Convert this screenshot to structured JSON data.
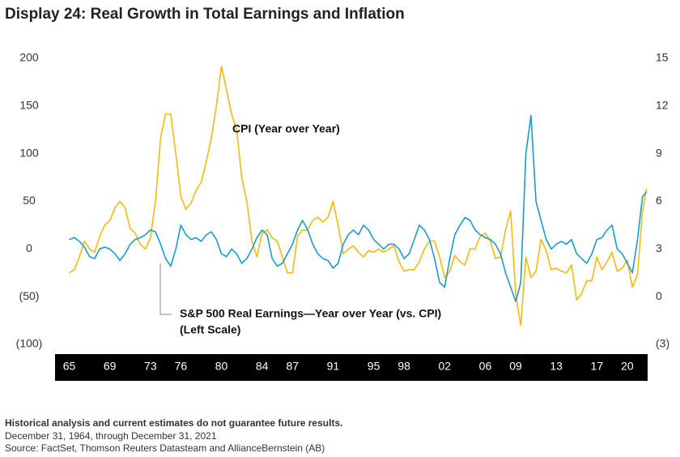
{
  "chart_data": {
    "type": "line",
    "title": "Display 24: Real Growth in Total Earnings and Inflation",
    "annotations": [
      "CPI (Year over Year)",
      "S&P 500 Real Earnings—Year over Year (vs. CPI)",
      "(Left Scale)"
    ],
    "footnotes": [
      "Historical analysis and current estimates do not guarantee future results.",
      "December 31, 1964, through December 31, 2021",
      "Source: FactSet, Thomson Reuters Datasteam and AllianceBernstein (AB)"
    ],
    "x": [
      1965,
      1965.5,
      1966,
      1966.5,
      1967,
      1967.5,
      1968,
      1968.5,
      1969,
      1969.5,
      1970,
      1970.5,
      1971,
      1971.5,
      1972,
      1972.5,
      1973,
      1973.5,
      1974,
      1974.5,
      1975,
      1975.5,
      1976,
      1976.5,
      1977,
      1977.5,
      1978,
      1978.5,
      1979,
      1979.5,
      1980,
      1980.5,
      1981,
      1981.5,
      1982,
      1982.5,
      1983,
      1983.5,
      1984,
      1984.5,
      1985,
      1985.5,
      1986,
      1986.5,
      1987,
      1987.5,
      1988,
      1988.5,
      1989,
      1989.5,
      1990,
      1990.5,
      1991,
      1991.5,
      1992,
      1992.5,
      1993,
      1993.5,
      1994,
      1994.5,
      1995,
      1995.5,
      1996,
      1996.5,
      1997,
      1997.5,
      1998,
      1998.5,
      1999,
      1999.5,
      2000,
      2000.5,
      2001,
      2001.5,
      2002,
      2002.5,
      2003,
      2003.5,
      2004,
      2004.5,
      2005,
      2005.5,
      2006,
      2006.5,
      2007,
      2007.5,
      2008,
      2008.5,
      2009,
      2009.5,
      2010,
      2010.5,
      2011,
      2011.5,
      2012,
      2012.5,
      2013,
      2013.5,
      2014,
      2014.5,
      2015,
      2015.5,
      2016,
      2016.5,
      2017,
      2017.5,
      2018,
      2018.5,
      2019,
      2019.5,
      2020,
      2020.5,
      2021,
      2021.5,
      2021.9
    ],
    "series": [
      {
        "name": "S&P 500 Real Earnings—Year over Year (vs. CPI)",
        "color": "#1a9bd0",
        "axis": "y",
        "values": [
          10,
          12,
          8,
          2,
          -8,
          -10,
          0,
          2,
          0,
          -5,
          -12,
          -5,
          5,
          10,
          12,
          15,
          20,
          18,
          5,
          -10,
          -18,
          0,
          25,
          15,
          10,
          12,
          8,
          15,
          18,
          10,
          -5,
          -8,
          0,
          -5,
          -15,
          -10,
          0,
          12,
          20,
          15,
          -10,
          -18,
          -15,
          -5,
          5,
          20,
          30,
          20,
          5,
          -5,
          -10,
          -12,
          -20,
          -15,
          5,
          15,
          20,
          15,
          25,
          20,
          10,
          5,
          0,
          5,
          5,
          0,
          -10,
          -5,
          10,
          25,
          20,
          10,
          -10,
          -35,
          -40,
          -10,
          15,
          25,
          33,
          30,
          20,
          15,
          12,
          10,
          5,
          -5,
          -25,
          -40,
          -55,
          -35,
          100,
          140,
          50,
          30,
          10,
          0,
          5,
          8,
          5,
          10,
          -5,
          -10,
          -15,
          -5,
          10,
          12,
          20,
          25,
          0,
          -5,
          -15,
          -25,
          10,
          55,
          60
        ]
      },
      {
        "name": "CPI (Year over Year)",
        "color": "#f5b90f",
        "axis": "y2",
        "values": [
          1.5,
          1.7,
          2.5,
          3.5,
          3.0,
          2.8,
          3.8,
          4.5,
          4.8,
          5.6,
          6.0,
          5.6,
          4.3,
          4.0,
          3.3,
          3.0,
          3.7,
          6.0,
          10,
          11.5,
          11.5,
          9.0,
          6.3,
          5.5,
          5.9,
          6.7,
          7.2,
          8.5,
          10,
          12,
          14.5,
          13,
          11.5,
          10.5,
          7.5,
          6,
          3.5,
          2.5,
          4.0,
          4.2,
          3.7,
          3.5,
          2.5,
          1.5,
          1.5,
          3.8,
          4.2,
          4.2,
          4.8,
          5.0,
          4.7,
          5.0,
          6.0,
          4.5,
          2.7,
          3.0,
          3.2,
          2.8,
          2.5,
          2.9,
          2.8,
          3.0,
          2.8,
          3.0,
          3.2,
          2.2,
          1.6,
          1.7,
          1.7,
          2.2,
          3.0,
          3.5,
          3.5,
          2.5,
          1.2,
          1.6,
          2.6,
          2.2,
          2.0,
          3.0,
          3.0,
          3.8,
          4.0,
          3.5,
          2.4,
          2.5,
          4.2,
          5.4,
          0.1,
          -1.8,
          2.5,
          1.2,
          1.6,
          3.6,
          2.9,
          1.7,
          1.8,
          1.6,
          1.5,
          2.0,
          -0.2,
          0.2,
          1.0,
          1.0,
          2.5,
          1.7,
          2.2,
          2.8,
          1.6,
          1.8,
          2.3,
          0.6,
          1.4,
          5.4,
          6.8
        ]
      }
    ],
    "xlim": [
      1963.6,
      2022
    ],
    "xticks": [
      {
        "value": 1965,
        "label": "65"
      },
      {
        "value": 1969,
        "label": "69"
      },
      {
        "value": 1973,
        "label": "73"
      },
      {
        "value": 1976,
        "label": "76"
      },
      {
        "value": 1980,
        "label": "80"
      },
      {
        "value": 1984,
        "label": "84"
      },
      {
        "value": 1987,
        "label": "87"
      },
      {
        "value": 1991,
        "label": "91"
      },
      {
        "value": 1995,
        "label": "95"
      },
      {
        "value": 1998,
        "label": "98"
      },
      {
        "value": 2002,
        "label": "02"
      },
      {
        "value": 2006,
        "label": "06"
      },
      {
        "value": 2009,
        "label": "09"
      },
      {
        "value": 2013,
        "label": "13"
      },
      {
        "value": 2017,
        "label": "17"
      },
      {
        "value": 2020,
        "label": "20"
      }
    ],
    "ylim": [
      -100,
      200
    ],
    "yticks": [
      {
        "value": -100,
        "label": "(100)"
      },
      {
        "value": -50,
        "label": "(50)"
      },
      0,
      50,
      100,
      150,
      200
    ],
    "y2lim": [
      -3,
      15
    ],
    "y2ticks": [
      {
        "value": -3,
        "label": "(3)"
      },
      0,
      3,
      6,
      9,
      12,
      15
    ],
    "grid": false
  }
}
